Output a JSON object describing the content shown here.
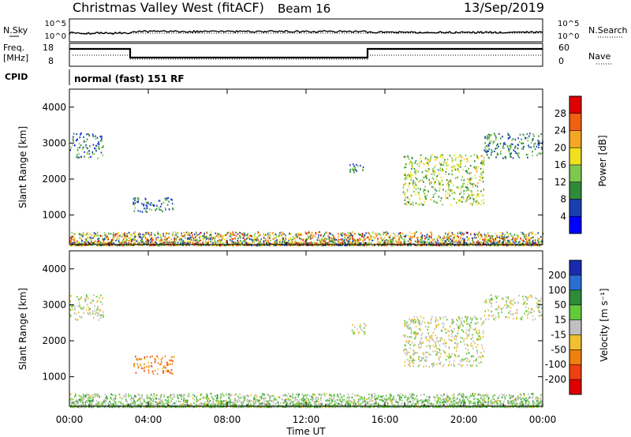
{
  "header": {
    "title": "Christmas Valley West (fitACF)",
    "beam": "Beam 16",
    "date": "13/Sep/2019"
  },
  "info": {
    "nsky_label": "N.Sky",
    "nsky_ticks": [
      "10^5",
      "10^0"
    ],
    "freq_label": "Freq.",
    "freq_unit": "[MHz]",
    "freq_ticks": [
      "18",
      "8"
    ],
    "cpid_label": "CPID",
    "cpid_text": "normal (fast) 151 RF",
    "nsearch_label": "N.Search",
    "nsearch_ticks": [
      "10^5",
      "10^0"
    ],
    "nave_label": "Nave",
    "nave_ticks": [
      "60",
      "0"
    ]
  },
  "x_axis": {
    "label": "Time UT",
    "ticks": [
      "00:00",
      "04:00",
      "08:00",
      "12:00",
      "16:00",
      "20:00",
      "00:00"
    ]
  },
  "y_axis": {
    "label": "Slant Range [km]",
    "ticks": [
      "1000",
      "2000",
      "3000",
      "4000"
    ]
  },
  "power_scale": {
    "label": "Power [dB]",
    "ticks": [
      "4",
      "8",
      "12",
      "16",
      "20",
      "24",
      "28"
    ],
    "colors": [
      "#0000ff",
      "#1a3fb0",
      "#2f8a3a",
      "#7ec850",
      "#f0e020",
      "#f5a623",
      "#f06010",
      "#e00000"
    ]
  },
  "velocity_scale": {
    "label": "Velocity [m s⁻¹]",
    "ticks": [
      "200",
      "100",
      "50",
      "15",
      "-15",
      "-50",
      "-100",
      "-200"
    ],
    "colors": [
      "#1a2ab0",
      "#2a6ed0",
      "#2e8b3a",
      "#62c83c",
      "#c0c0c0",
      "#f0c030",
      "#f08010",
      "#f04010",
      "#e00000"
    ]
  },
  "chart_data": [
    {
      "type": "heatmap",
      "title": "",
      "xlabel": "Time UT",
      "ylabel": "Slant Range [km]",
      "xlim": [
        0,
        24
      ],
      "ylim": [
        180,
        4500
      ],
      "value_label": "Power [dB]",
      "value_range": [
        0,
        30
      ],
      "grid": false,
      "echo_regions": [
        {
          "t_start": 0.0,
          "t_end": 24.0,
          "range_start": 180,
          "range_end": 550,
          "typical_value": 18
        },
        {
          "t_start": 0.0,
          "t_end": 1.7,
          "range_start": 2600,
          "range_end": 3300,
          "typical_value": 9
        },
        {
          "t_start": 3.2,
          "t_end": 5.3,
          "range_start": 1100,
          "range_end": 1500,
          "typical_value": 9
        },
        {
          "t_start": 14.2,
          "t_end": 15.0,
          "range_start": 2200,
          "range_end": 2500,
          "typical_value": 9
        },
        {
          "t_start": 16.9,
          "t_end": 21.0,
          "range_start": 1300,
          "range_end": 2700,
          "typical_value": 15
        },
        {
          "t_start": 21.0,
          "t_end": 24.0,
          "range_start": 2600,
          "range_end": 3300,
          "typical_value": 10
        }
      ]
    },
    {
      "type": "heatmap",
      "title": "",
      "xlabel": "Time UT",
      "ylabel": "Slant Range [km]",
      "xlim": [
        0,
        24
      ],
      "ylim": [
        180,
        4500
      ],
      "value_label": "Velocity [m s⁻¹]",
      "value_range": [
        -250,
        250
      ],
      "grid": false,
      "echo_regions": [
        {
          "t_start": 0.0,
          "t_end": 24.0,
          "range_start": 180,
          "range_end": 550,
          "typical_value": 20
        },
        {
          "t_start": 0.0,
          "t_end": 1.7,
          "range_start": 2600,
          "range_end": 3300,
          "typical_value": 0
        },
        {
          "t_start": 3.2,
          "t_end": 5.3,
          "range_start": 1100,
          "range_end": 1600,
          "typical_value": -75
        },
        {
          "t_start": 14.2,
          "t_end": 15.0,
          "range_start": 2200,
          "range_end": 2500,
          "typical_value": 0
        },
        {
          "t_start": 16.9,
          "t_end": 21.0,
          "range_start": 1300,
          "range_end": 2700,
          "typical_value": 0
        },
        {
          "t_start": 21.0,
          "t_end": 24.0,
          "range_start": 2600,
          "range_end": 3300,
          "typical_value": 0
        }
      ]
    }
  ]
}
